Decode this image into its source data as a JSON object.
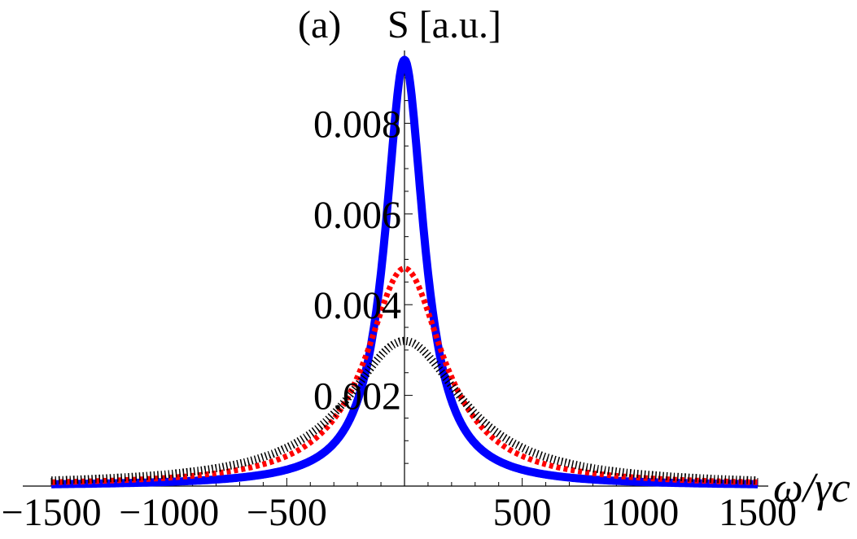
{
  "chart_data": {
    "type": "line",
    "panel_label": "(a)",
    "ylabel": "S [a.u.]",
    "xlabel": "ω/γc",
    "xlim": [
      -1550,
      1550
    ],
    "ylim": [
      0,
      0.0097
    ],
    "x_ticks": [
      -1500,
      -1000,
      -500,
      500,
      1000,
      1500
    ],
    "x_tick_labels": [
      "−1500",
      "−1000",
      "−500",
      "500",
      "1000",
      "1500"
    ],
    "y_ticks": [
      0.002,
      0.004,
      0.006,
      0.008
    ],
    "y_tick_labels": [
      "0.002",
      "0.004",
      "0.006",
      "0.008"
    ],
    "grid": false,
    "x_range": [
      -1500,
      1500
    ],
    "series": [
      {
        "color": "#0000ff",
        "style": "solid",
        "peak_x": 0,
        "peak": 0.0094,
        "half_width": 100
      },
      {
        "color": "#ff0000",
        "style": "dotted",
        "peak_x": 0,
        "peak": 0.0048,
        "half_width": 200
      },
      {
        "color": "#000000",
        "style": "dotted",
        "peak_x": 0,
        "peak": 0.0032,
        "half_width": 300
      }
    ]
  }
}
